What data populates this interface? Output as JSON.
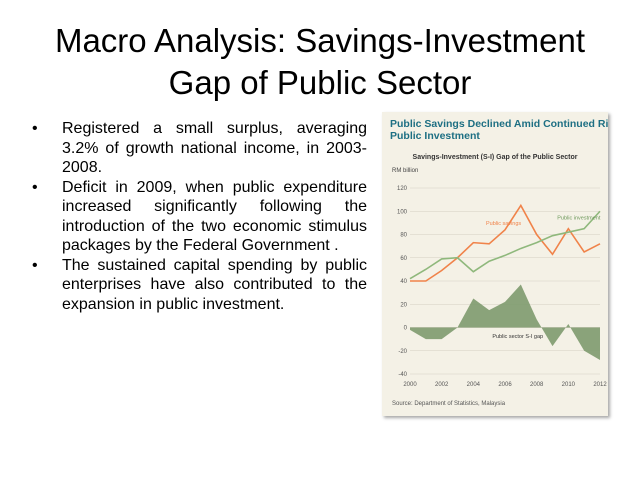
{
  "slide": {
    "title_line1": "Macro Analysis: Savings-Investment",
    "title_line2": "Gap of Public Sector"
  },
  "bullets": [
    {
      "symbol": "•",
      "text": "Registered a small surplus, averaging 3.2% of growth national income, in 2003-2008."
    },
    {
      "symbol": "•",
      "text": "Deficit in 2009, when public expenditure increased significantly following the introduction of the two economic stimulus packages by the Federal Government ."
    },
    {
      "symbol": "•",
      "text": "The sustained capital spending by public enterprises have also contributed to the expansion in public investment."
    }
  ],
  "chart_card": {
    "title_line1": "Public Savings Declined Amid Continued Rise in",
    "title_line2": "Public Investment",
    "source": "Source: Department of Statistics, Malaysia"
  },
  "chart_data": {
    "type": "line",
    "title": "Savings-Investment (S-I) Gap of the Public Sector",
    "ylabel": "RM billion",
    "xlabel": "",
    "ylim": [
      -40,
      120
    ],
    "yticks": [
      120,
      100,
      80,
      60,
      40,
      20,
      0,
      -20,
      -40
    ],
    "xlim": [
      2000,
      2012
    ],
    "xticks": [
      2000,
      2002,
      2004,
      2006,
      2008,
      2010,
      2012
    ],
    "grid": true,
    "colors": {
      "public_savings": "#f0834a",
      "public_investment": "#8fb87c",
      "gap_area": "#7e9a6e",
      "axis_text": "#555555",
      "grid": "#d3d0c3"
    },
    "series": [
      {
        "name": "Public savings",
        "kind": "line",
        "x": [
          2000,
          2001,
          2002,
          2003,
          2004,
          2005,
          2006,
          2007,
          2008,
          2009,
          2010,
          2011,
          2012
        ],
        "values": [
          40,
          40,
          49,
          60,
          73,
          72,
          84,
          105,
          80,
          63,
          85,
          65,
          72
        ]
      },
      {
        "name": "Public investment",
        "kind": "line",
        "x": [
          2000,
          2001,
          2002,
          2003,
          2004,
          2005,
          2006,
          2007,
          2008,
          2009,
          2010,
          2011,
          2012
        ],
        "values": [
          42,
          50,
          59,
          60,
          48,
          57,
          62,
          68,
          73,
          79,
          82,
          85,
          100
        ]
      },
      {
        "name": "Public sector S-I gap",
        "kind": "area",
        "x": [
          2000,
          2001,
          2002,
          2003,
          2004,
          2005,
          2006,
          2007,
          2008,
          2009,
          2010,
          2011,
          2012
        ],
        "values": [
          -2,
          -10,
          -10,
          0,
          25,
          15,
          22,
          37,
          7,
          -16,
          3,
          -20,
          -28
        ]
      }
    ]
  }
}
